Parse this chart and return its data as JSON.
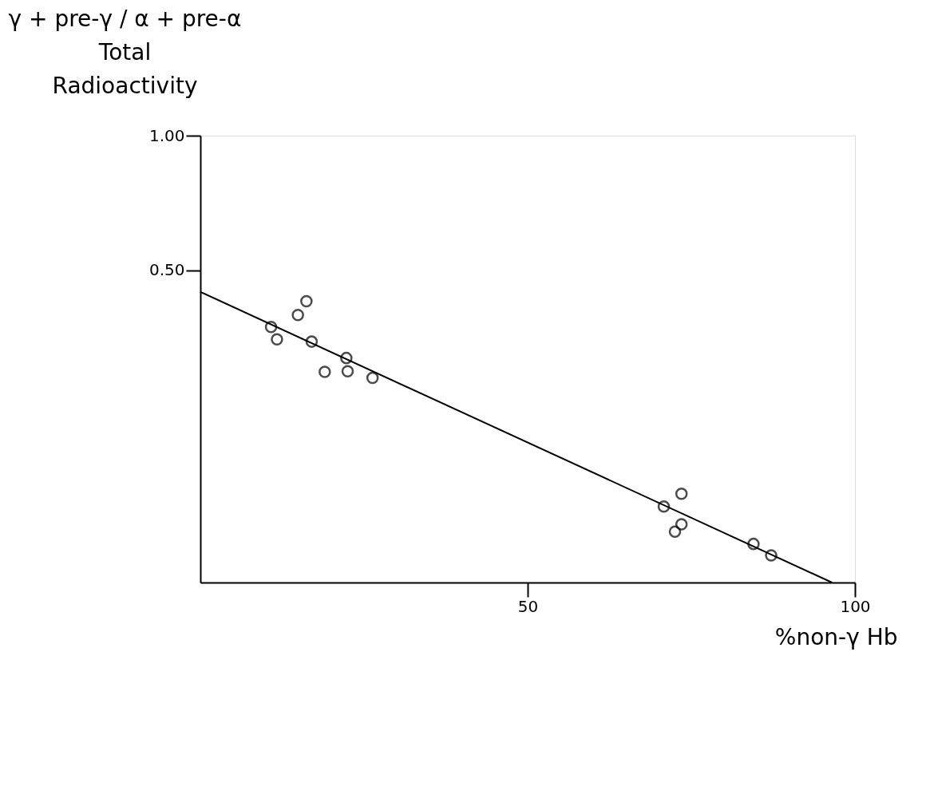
{
  "chart_data": {
    "type": "scatter",
    "xlabel": "%non-γ Hb",
    "ylabel": "γ + pre-γ / α + pre-α\nTotal\nRadioactivity",
    "log": "y",
    "xlim": [
      0,
      100
    ],
    "xticks": [
      50,
      100
    ],
    "ylim": [
      0.1,
      1.0
    ],
    "yticks": [
      {
        "value": 1.0,
        "label": "1.00"
      },
      {
        "value": 0.5,
        "label": "0.50"
      }
    ],
    "grid": false,
    "marker": "circle",
    "series": [
      {
        "color": "#000000",
        "x": [
          10.8,
          11.7,
          14.9,
          16.2,
          17.0,
          19.0,
          22.3,
          22.5,
          26.3,
          70.8,
          73.5,
          73.5,
          72.5,
          84.5,
          87.2
        ],
        "values": [
          0.373,
          0.35,
          0.397,
          0.426,
          0.346,
          0.296,
          0.318,
          0.297,
          0.287,
          0.148,
          0.158,
          0.135,
          0.13,
          0.122,
          0.115
        ]
      },
      {
        "type": "line",
        "color": "#000000",
        "marker": "none",
        "x": [
          0,
          96.5
        ],
        "values": [
          0.447,
          0.1
        ]
      }
    ]
  }
}
